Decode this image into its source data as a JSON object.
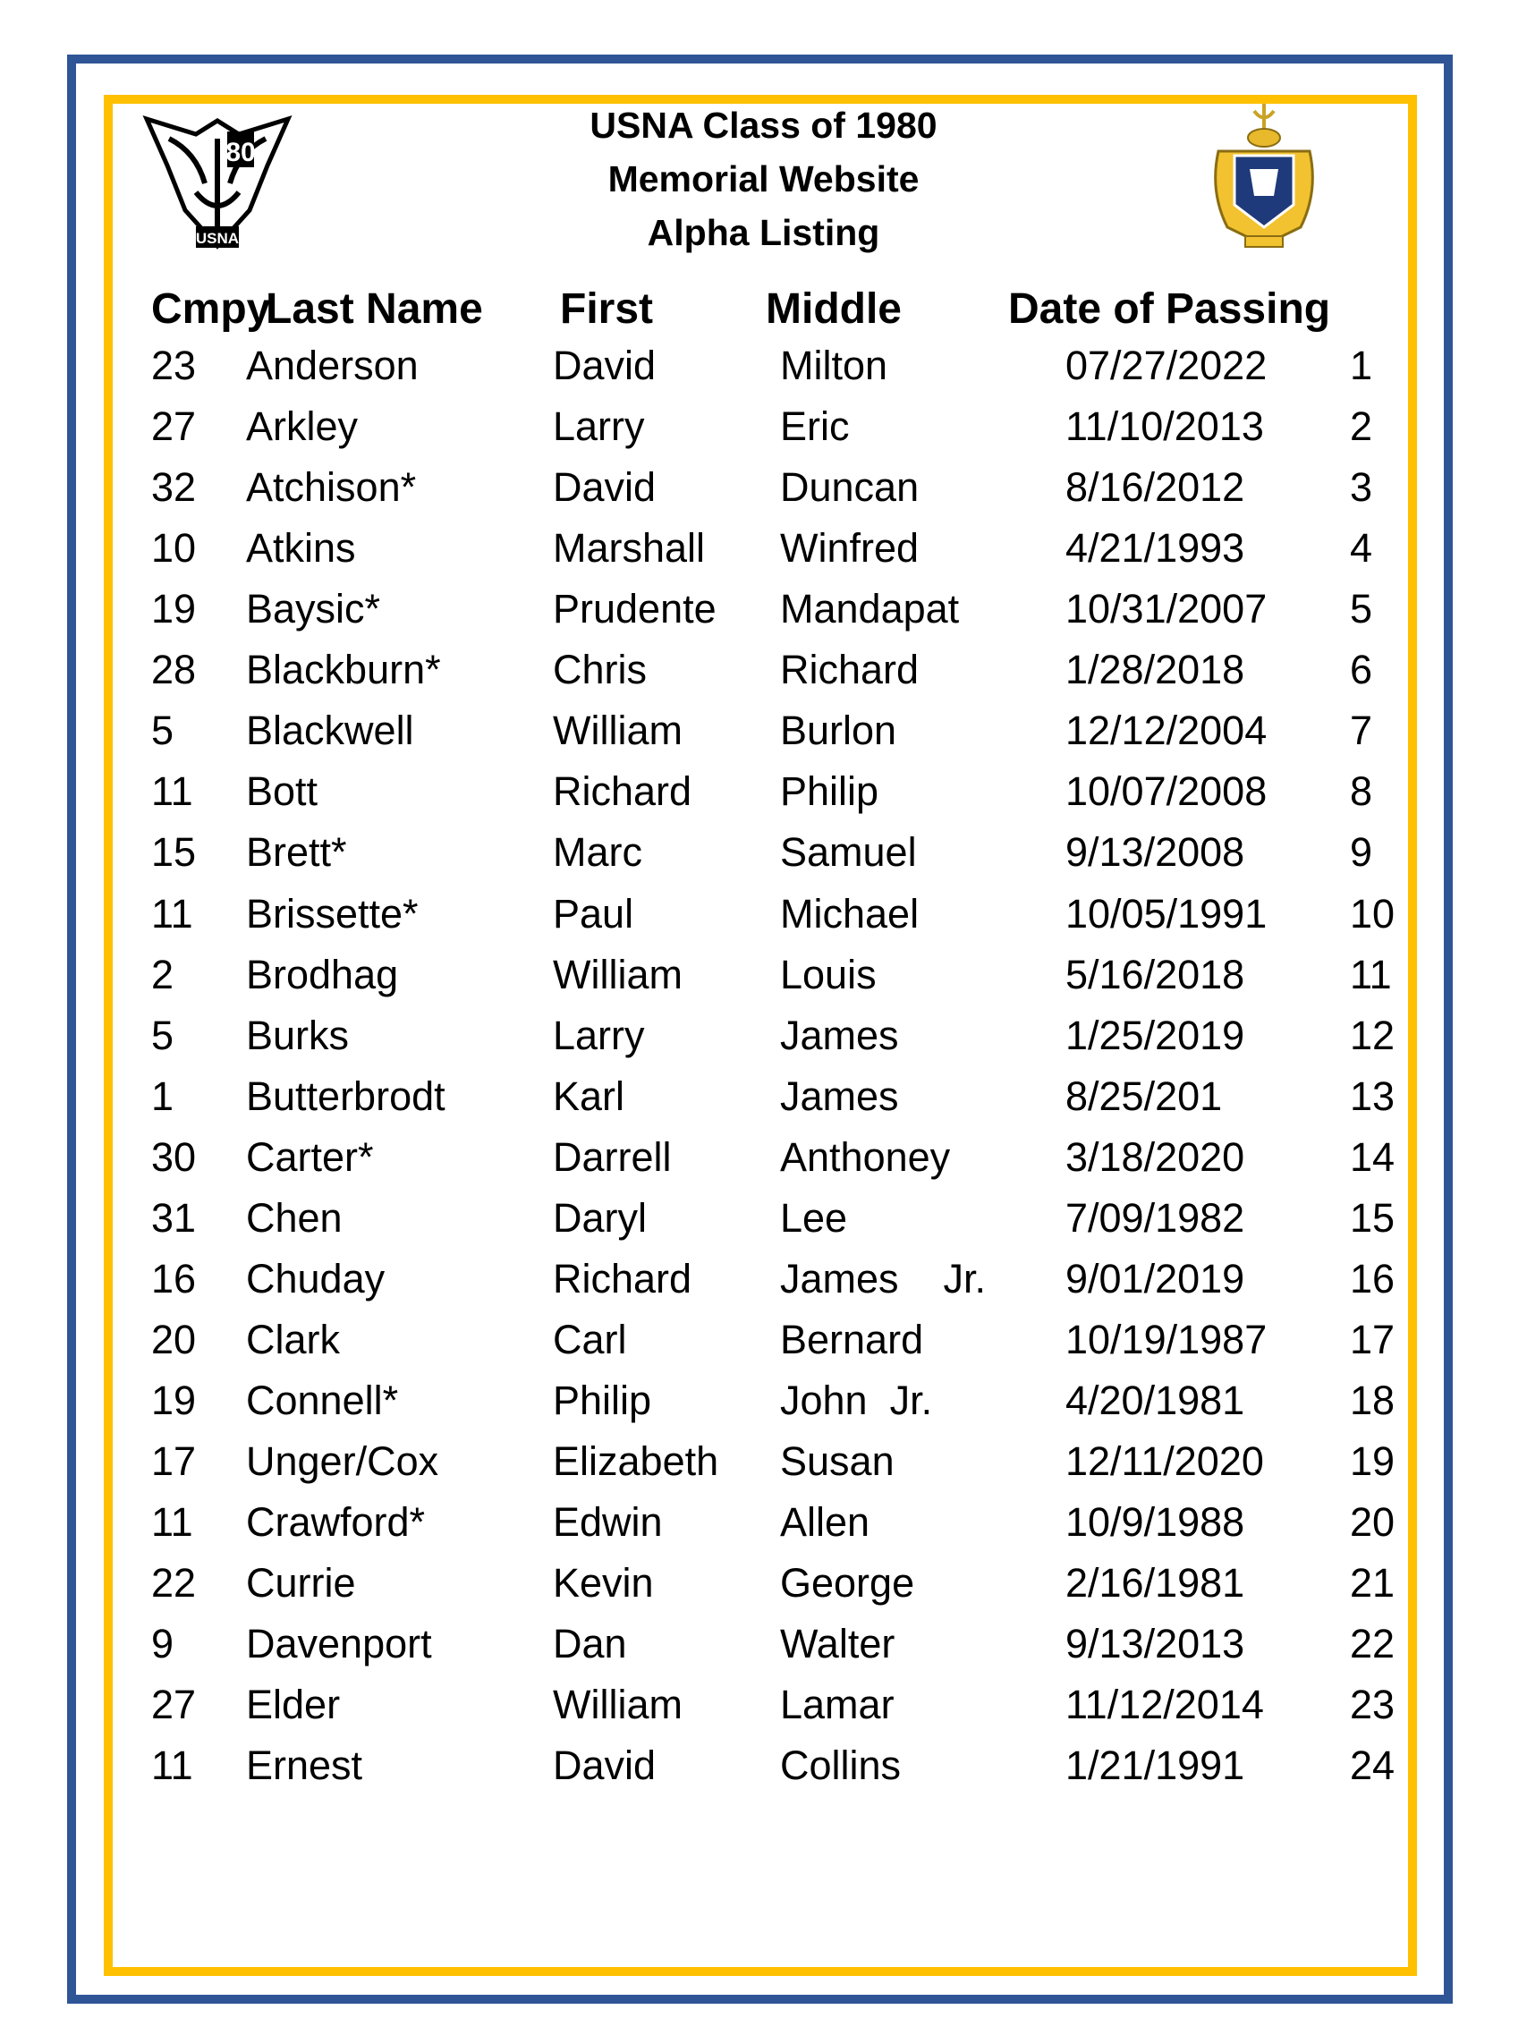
{
  "title": {
    "line1": "USNA Class of 1980",
    "line2": "Memorial Website",
    "line3": "Alpha Listing"
  },
  "logos": {
    "left": "USNA 80",
    "right": "U.S. Naval Academy Ex Scientia Tridens"
  },
  "colors": {
    "outer_border": "#2f5597",
    "inner_border": "#ffc000"
  },
  "headers": {
    "cmpy": "Cmpy",
    "last": "Last Name",
    "first": "First",
    "middle": "Middle",
    "date": "Date of Passing"
  },
  "rows": [
    {
      "cmpy": "23",
      "last": "Anderson",
      "first": "David",
      "middle": "Milton",
      "date": "07/27/2022",
      "num": "1"
    },
    {
      "cmpy": "27",
      "last": "Arkley",
      "first": "Larry",
      "middle": "Eric",
      "date": "11/10/2013",
      "num": "2"
    },
    {
      "cmpy": "32",
      "last": "Atchison*",
      "first": "David",
      "middle": "Duncan",
      "date": "8/16/2012",
      "num": "3"
    },
    {
      "cmpy": "10",
      "last": "Atkins",
      "first": "Marshall",
      "middle": "Winfred",
      "date": "4/21/1993",
      "num": "4"
    },
    {
      "cmpy": "19",
      "last": "Baysic*",
      "first": "Prudente",
      "middle": "Mandapat",
      "date": "10/31/2007",
      "num": "5"
    },
    {
      "cmpy": "28",
      "last": "Blackburn*",
      "first": "Chris",
      "middle": "Richard",
      "date": "1/28/2018",
      "num": "6"
    },
    {
      "cmpy": "5",
      "last": "Blackwell",
      "first": "William",
      "middle": "Burlon",
      "date": "12/12/2004",
      "num": "7"
    },
    {
      "cmpy": "11",
      "last": "Bott",
      "first": "Richard",
      "middle": "Philip",
      "date": "10/07/2008",
      "num": "8"
    },
    {
      "cmpy": "15",
      "last": "Brett*",
      "first": "Marc",
      "middle": "Samuel",
      "date": "9/13/2008",
      "num": "9"
    },
    {
      "cmpy": "11",
      "last": "Brissette*",
      "first": "Paul",
      "middle": "Michael",
      "date": "10/05/1991",
      "num": "10"
    },
    {
      "cmpy": "2",
      "last": "Brodhag",
      "first": "William",
      "middle": "Louis",
      "date": "5/16/2018",
      "num": "11"
    },
    {
      "cmpy": "5",
      "last": "Burks",
      "first": "Larry",
      "middle": "James",
      "date": "1/25/2019",
      "num": "12"
    },
    {
      "cmpy": "1",
      "last": "Butterbrodt",
      "first": "Karl",
      "middle": "James",
      "date": "8/25/201",
      "num": "13"
    },
    {
      "cmpy": "30",
      "last": "Carter*",
      "first": "Darrell",
      "middle": "Anthoney",
      "date": "3/18/2020",
      "num": "14"
    },
    {
      "cmpy": "31",
      "last": "Chen",
      "first": "Daryl",
      "middle": "Lee",
      "date": "7/09/1982",
      "num": "15"
    },
    {
      "cmpy": "16",
      "last": "Chuday",
      "first": "Richard",
      "middle": "James    Jr.",
      "date": "9/01/2019",
      "num": "16"
    },
    {
      "cmpy": "20",
      "last": "Clark",
      "first": "Carl",
      "middle": "Bernard",
      "date": "10/19/1987",
      "num": "17"
    },
    {
      "cmpy": "19",
      "last": "Connell*",
      "first": "Philip",
      "middle": "John  Jr.",
      "date": "4/20/1981",
      "num": "18"
    },
    {
      "cmpy": "17",
      "last": "Unger/Cox",
      "first": "Elizabeth",
      "middle": "Susan",
      "date": "12/11/2020",
      "num": "19"
    },
    {
      "cmpy": "11",
      "last": "Crawford*",
      "first": "Edwin",
      "middle": "Allen",
      "date": "10/9/1988",
      "num": "20"
    },
    {
      "cmpy": "22",
      "last": "Currie",
      "first": "Kevin",
      "middle": "George",
      "date": "2/16/1981",
      "num": "21"
    },
    {
      "cmpy": "9",
      "last": "Davenport",
      "first": "Dan",
      "middle": "Walter",
      "date": "9/13/2013",
      "num": "22"
    },
    {
      "cmpy": "27",
      "last": "Elder",
      "first": "William",
      "middle": "Lamar",
      "date": "11/12/2014",
      "num": "23"
    },
    {
      "cmpy": "11",
      "last": "Ernest",
      "first": "David",
      "middle": "Collins",
      "date": "1/21/1991",
      "num": "24"
    }
  ]
}
